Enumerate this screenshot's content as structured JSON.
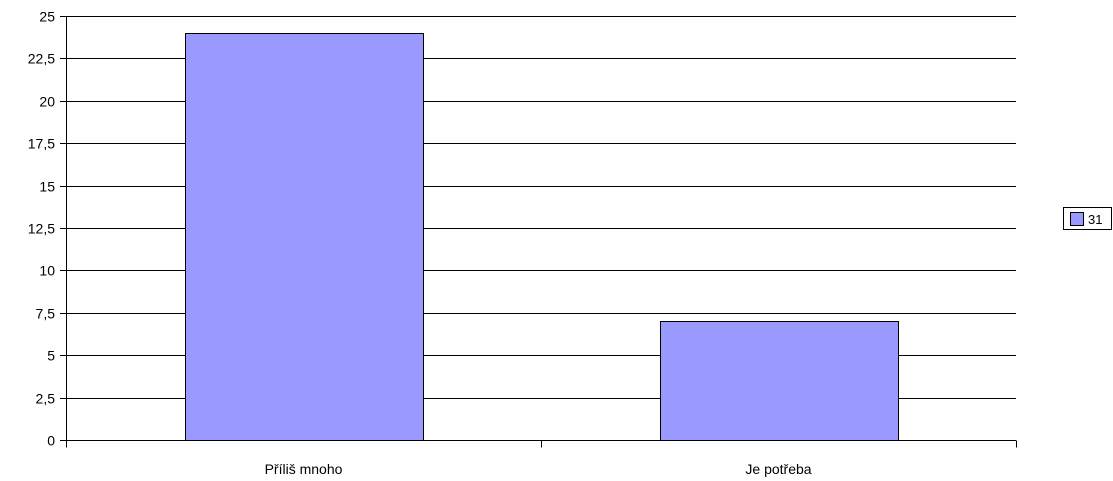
{
  "chart_data": {
    "type": "bar",
    "categories": [
      "Příliš mnoho",
      "Je potřeba"
    ],
    "series": [
      {
        "name": "31",
        "values": [
          24,
          7
        ],
        "color": "#9999ff"
      }
    ],
    "y_ticks": [
      "0",
      "2,5",
      "5",
      "7,5",
      "10",
      "12,5",
      "15",
      "17,5",
      "20",
      "22,5",
      "25"
    ],
    "ylim": [
      0,
      25
    ],
    "grid": true,
    "legend_position": "right"
  }
}
